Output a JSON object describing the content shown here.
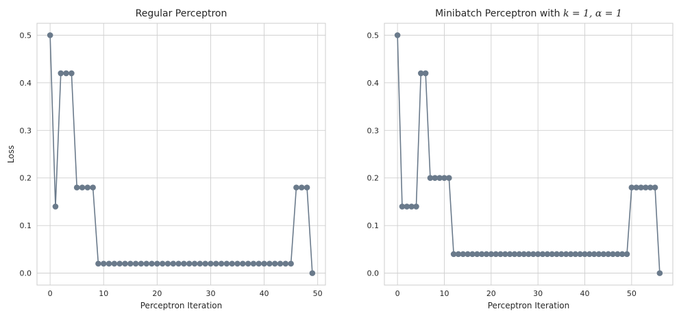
{
  "chart_data": [
    {
      "type": "line",
      "title": "Regular Perceptron",
      "xlabel": "Perceptron Iteration",
      "ylabel": "Loss",
      "xlim": [
        -2.45,
        51.45
      ],
      "ylim": [
        -0.025,
        0.525
      ],
      "xticks": [
        "0",
        "10",
        "20",
        "30",
        "40",
        "50"
      ],
      "yticks": [
        "0.0",
        "0.1",
        "0.2",
        "0.3",
        "0.4",
        "0.5"
      ],
      "grid": true,
      "marker": "circle",
      "color": "#6a7a8b",
      "x": [
        0,
        1,
        2,
        3,
        4,
        5,
        6,
        7,
        8,
        9,
        10,
        11,
        12,
        13,
        14,
        15,
        16,
        17,
        18,
        19,
        20,
        21,
        22,
        23,
        24,
        25,
        26,
        27,
        28,
        29,
        30,
        31,
        32,
        33,
        34,
        35,
        36,
        37,
        38,
        39,
        40,
        41,
        42,
        43,
        44,
        45,
        46,
        47,
        48,
        49
      ],
      "y": [
        0.5,
        0.14,
        0.42,
        0.42,
        0.42,
        0.18,
        0.18,
        0.18,
        0.18,
        0.02,
        0.02,
        0.02,
        0.02,
        0.02,
        0.02,
        0.02,
        0.02,
        0.02,
        0.02,
        0.02,
        0.02,
        0.02,
        0.02,
        0.02,
        0.02,
        0.02,
        0.02,
        0.02,
        0.02,
        0.02,
        0.02,
        0.02,
        0.02,
        0.02,
        0.02,
        0.02,
        0.02,
        0.02,
        0.02,
        0.02,
        0.02,
        0.02,
        0.02,
        0.02,
        0.02,
        0.02,
        0.18,
        0.18,
        0.18,
        0.0
      ]
    },
    {
      "type": "line",
      "title_prefix": "Minibatch Perceptron with ",
      "title_math": "k = 1, α = 1",
      "xlabel": "Perceptron Iteration",
      "ylabel": "",
      "xlim": [
        -2.8,
        58.8
      ],
      "ylim": [
        -0.025,
        0.525
      ],
      "xticks": [
        "0",
        "10",
        "20",
        "30",
        "40",
        "50"
      ],
      "yticks": [
        "0.0",
        "0.1",
        "0.2",
        "0.3",
        "0.4",
        "0.5"
      ],
      "grid": true,
      "marker": "circle",
      "color": "#6a7a8b",
      "x": [
        0,
        1,
        2,
        3,
        4,
        5,
        6,
        7,
        8,
        9,
        10,
        11,
        12,
        13,
        14,
        15,
        16,
        17,
        18,
        19,
        20,
        21,
        22,
        23,
        24,
        25,
        26,
        27,
        28,
        29,
        30,
        31,
        32,
        33,
        34,
        35,
        36,
        37,
        38,
        39,
        40,
        41,
        42,
        43,
        44,
        45,
        46,
        47,
        48,
        49,
        50,
        51,
        52,
        53,
        54,
        55,
        56
      ],
      "y": [
        0.5,
        0.14,
        0.14,
        0.14,
        0.14,
        0.42,
        0.42,
        0.2,
        0.2,
        0.2,
        0.2,
        0.2,
        0.04,
        0.04,
        0.04,
        0.04,
        0.04,
        0.04,
        0.04,
        0.04,
        0.04,
        0.04,
        0.04,
        0.04,
        0.04,
        0.04,
        0.04,
        0.04,
        0.04,
        0.04,
        0.04,
        0.04,
        0.04,
        0.04,
        0.04,
        0.04,
        0.04,
        0.04,
        0.04,
        0.04,
        0.04,
        0.04,
        0.04,
        0.04,
        0.04,
        0.04,
        0.04,
        0.04,
        0.04,
        0.04,
        0.18,
        0.18,
        0.18,
        0.18,
        0.18,
        0.18,
        0.0
      ]
    }
  ]
}
